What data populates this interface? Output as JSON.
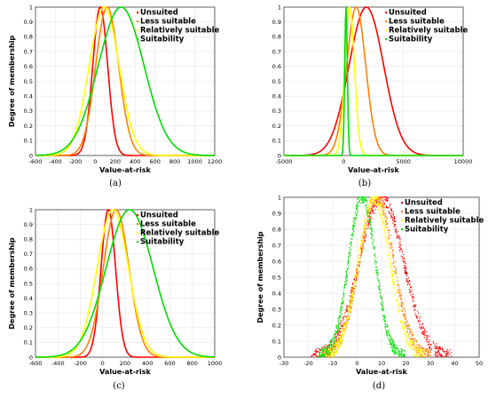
{
  "colors": {
    "Unsuited": "#ff0000",
    "Less suitable": "#ff8000",
    "Relatively suitable": "#ffff00",
    "Suitability": "#00dd00"
  },
  "chart_data": [
    {
      "type": "line",
      "panel_caption": "(a)",
      "xlabel": "Value-at-risk",
      "ylabel": "Degree of membership",
      "xlim": [
        -600,
        1200
      ],
      "ylim": [
        0,
        1
      ],
      "xticks": [
        -600,
        -400,
        -200,
        0,
        200,
        400,
        600,
        800,
        1000,
        1200
      ],
      "yticks": [
        0,
        0.1,
        0.2,
        0.3,
        0.4,
        0.5,
        0.6,
        0.7,
        0.8,
        0.9,
        1
      ],
      "grid": true,
      "legend": [
        "Unsuited",
        "Less suitable",
        "Relatively suitable",
        "Suitability"
      ],
      "series": [
        {
          "name": "Unsuited",
          "curve": "gaussian",
          "center": 50,
          "sigma": 75
        },
        {
          "name": "Less suitable",
          "curve": "gaussian",
          "center": 120,
          "sigma": 115
        },
        {
          "name": "Relatively suitable",
          "curve": "gaussian",
          "center": 90,
          "sigma": 150
        },
        {
          "name": "Suitability",
          "curve": "gaussian",
          "center": 260,
          "sigma": 230
        }
      ]
    },
    {
      "type": "line",
      "panel_caption": "(b)",
      "xlabel": "Value-at-risk",
      "ylabel": "",
      "xlim": [
        -5000,
        10000
      ],
      "ylim": [
        0,
        1
      ],
      "xticks": [
        -5000,
        0,
        5000,
        10000
      ],
      "yticks": [
        0,
        0.1,
        0.2,
        0.3,
        0.4,
        0.5,
        0.6,
        0.7,
        0.8,
        0.9,
        1
      ],
      "grid": true,
      "legend": [
        "Unsuited",
        "Less suitable",
        "Relatively suitable",
        "Suitability"
      ],
      "series": [
        {
          "name": "Unsuited",
          "curve": "gaussian",
          "center": 1900,
          "sigma": 1450
        },
        {
          "name": "Less suitable",
          "curve": "gaussian",
          "center": 1050,
          "sigma": 800
        },
        {
          "name": "Relatively suitable",
          "curve": "gaussian",
          "center": 500,
          "sigma": 400
        },
        {
          "name": "Suitability",
          "curve": "gaussian",
          "center": 200,
          "sigma": 110
        }
      ]
    },
    {
      "type": "line",
      "panel_caption": "(c)",
      "xlabel": "Value-at-risk",
      "ylabel": "Degree of membership",
      "xlim": [
        -600,
        1000
      ],
      "ylim": [
        0,
        1
      ],
      "xticks": [
        -600,
        -400,
        -200,
        0,
        200,
        400,
        600,
        800,
        1000
      ],
      "yticks": [
        0,
        0.1,
        0.2,
        0.3,
        0.4,
        0.5,
        0.6,
        0.7,
        0.8,
        0.9,
        1
      ],
      "grid": true,
      "legend": [
        "Unsuited",
        "Less suitable",
        "Relatively suitable",
        "Suitability"
      ],
      "series": [
        {
          "name": "Unsuited",
          "curve": "gaussian",
          "center": 50,
          "sigma": 65
        },
        {
          "name": "Less suitable",
          "curve": "gaussian",
          "center": 120,
          "sigma": 115
        },
        {
          "name": "Relatively suitable",
          "curve": "gaussian",
          "center": 90,
          "sigma": 140
        },
        {
          "name": "Suitability",
          "curve": "gaussian",
          "center": 240,
          "sigma": 210
        }
      ]
    },
    {
      "type": "scatter",
      "panel_caption": "(d)",
      "xlabel": "Value-at-risk",
      "ylabel": "Degree of membership",
      "xlim": [
        -30,
        50
      ],
      "ylim": [
        0,
        1
      ],
      "xticks": [
        -30,
        -20,
        -10,
        0,
        10,
        20,
        30,
        40,
        50
      ],
      "yticks": [
        0,
        0.1,
        0.2,
        0.3,
        0.4,
        0.5,
        0.6,
        0.7,
        0.8,
        0.9,
        1
      ],
      "grid": true,
      "legend": [
        "Unsuited",
        "Less suitable",
        "Relatively suitable",
        "Suitability"
      ],
      "series": [
        {
          "name": "Unsuited",
          "curve": "gaussian",
          "center": 10,
          "sigma": 9
        },
        {
          "name": "Less suitable",
          "curve": "gaussian",
          "center": 8,
          "sigma": 7
        },
        {
          "name": "Relatively suitable",
          "curve": "gaussian",
          "center": 7,
          "sigma": 6.5
        },
        {
          "name": "Suitability",
          "curve": "gaussian",
          "center": 2,
          "sigma": 5.5
        }
      ]
    }
  ]
}
